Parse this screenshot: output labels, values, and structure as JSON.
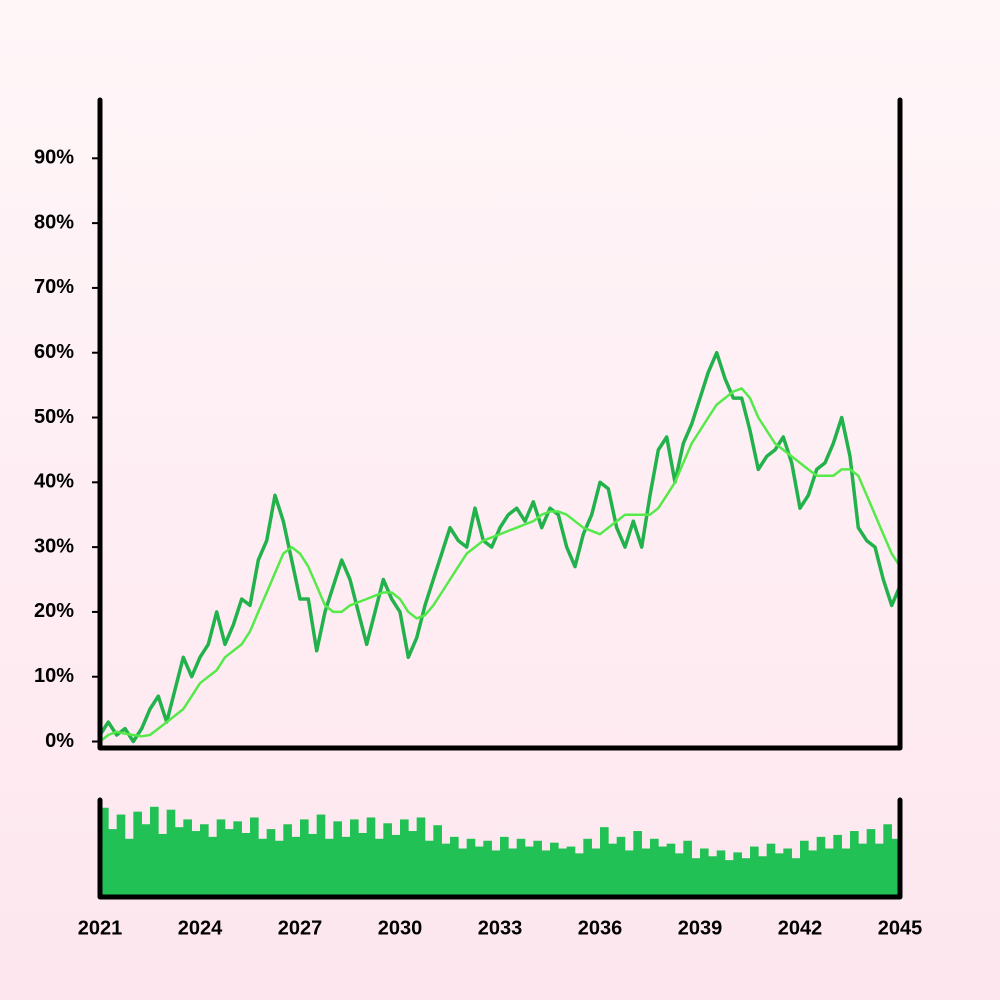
{
  "chart_data": [
    {
      "type": "line",
      "xlim": [
        2021,
        2045
      ],
      "ylim": [
        -1,
        99
      ],
      "yticks": [
        {
          "value": 0,
          "label": "0%"
        },
        {
          "value": 10,
          "label": "10%"
        },
        {
          "value": 20,
          "label": "20%"
        },
        {
          "value": 30,
          "label": "30%"
        },
        {
          "value": 40,
          "label": "40%"
        },
        {
          "value": 50,
          "label": "50%"
        },
        {
          "value": 60,
          "label": "60%"
        },
        {
          "value": 70,
          "label": "70%"
        },
        {
          "value": 80,
          "label": "80%"
        },
        {
          "value": 90,
          "label": "90%"
        }
      ],
      "grid": false,
      "x": [
        2021,
        2021.25,
        2021.5,
        2021.75,
        2022,
        2022.25,
        2022.5,
        2022.75,
        2023,
        2023.25,
        2023.5,
        2023.75,
        2024,
        2024.25,
        2024.5,
        2024.75,
        2025,
        2025.25,
        2025.5,
        2025.75,
        2026,
        2026.25,
        2026.5,
        2026.75,
        2027,
        2027.25,
        2027.5,
        2027.75,
        2028,
        2028.25,
        2028.5,
        2028.75,
        2029,
        2029.25,
        2029.5,
        2029.75,
        2030,
        2030.25,
        2030.5,
        2030.75,
        2031,
        2031.25,
        2031.5,
        2031.75,
        2032,
        2032.25,
        2032.5,
        2032.75,
        2033,
        2033.25,
        2033.5,
        2033.75,
        2034,
        2034.25,
        2034.5,
        2034.75,
        2035,
        2035.25,
        2035.5,
        2035.75,
        2036,
        2036.25,
        2036.5,
        2036.75,
        2037,
        2037.25,
        2037.5,
        2037.75,
        2038,
        2038.25,
        2038.5,
        2038.75,
        2039,
        2039.25,
        2039.5,
        2039.75,
        2040,
        2040.25,
        2040.5,
        2040.75,
        2041,
        2041.25,
        2041.5,
        2041.75,
        2042,
        2042.25,
        2042.5,
        2042.75,
        2043,
        2043.25,
        2043.5,
        2043.75,
        2044,
        2044.25,
        2044.5,
        2044.75,
        2045
      ],
      "series": [
        {
          "color": "#22b24c",
          "width": 3.5,
          "values": [
            1,
            3,
            1,
            2,
            0,
            2,
            5,
            7,
            3,
            8,
            13,
            10,
            13,
            15,
            20,
            15,
            18,
            22,
            21,
            28,
            31,
            38,
            34,
            28,
            22,
            22,
            14,
            20,
            24,
            28,
            25,
            20,
            15,
            20,
            25,
            22,
            20,
            13,
            16,
            21,
            25,
            29,
            33,
            31,
            30,
            36,
            31,
            30,
            33,
            35,
            36,
            34,
            37,
            33,
            36,
            35,
            30,
            27,
            32,
            35,
            40,
            39,
            33,
            30,
            34,
            30,
            38,
            45,
            47,
            40,
            46,
            49,
            53,
            57,
            60,
            56,
            53,
            53,
            48,
            42,
            44,
            45,
            47,
            43,
            36,
            38,
            42,
            43,
            46,
            50,
            44,
            33,
            31,
            30,
            25,
            21,
            24
          ]
        },
        {
          "color": "#55e94a",
          "width": 2.5,
          "values": [
            0,
            1,
            1.5,
            1.2,
            1,
            0.8,
            1,
            2,
            3,
            4,
            5,
            7,
            9,
            10,
            11,
            13,
            14,
            15,
            17,
            20,
            23,
            26,
            29,
            30,
            29,
            27,
            24,
            21,
            20,
            20,
            21,
            21.5,
            22,
            22.5,
            23,
            23,
            22,
            20,
            19,
            19.5,
            21,
            23,
            25,
            27,
            29,
            30,
            31,
            31.5,
            32,
            32.5,
            33,
            33.5,
            34,
            35,
            35.5,
            35.5,
            35,
            34,
            33,
            32.5,
            32,
            33,
            34,
            35,
            35,
            35,
            35,
            36,
            38,
            40,
            43,
            46,
            48,
            50,
            52,
            53,
            54,
            54.5,
            53,
            50,
            48,
            46,
            45,
            44,
            43,
            42,
            41,
            41,
            41,
            42,
            42,
            41,
            38,
            35,
            32,
            29,
            27
          ]
        }
      ]
    },
    {
      "type": "bar",
      "xlim": [
        2021,
        2045
      ],
      "xticks": [
        2021,
        2024,
        2027,
        2030,
        2033,
        2036,
        2039,
        2042,
        2045
      ],
      "ylim": [
        0,
        100
      ],
      "color": "#22c155",
      "x": [
        2021,
        2021.25,
        2021.5,
        2021.75,
        2022,
        2022.25,
        2022.5,
        2022.75,
        2023,
        2023.25,
        2023.5,
        2023.75,
        2024,
        2024.25,
        2024.5,
        2024.75,
        2025,
        2025.25,
        2025.5,
        2025.75,
        2026,
        2026.25,
        2026.5,
        2026.75,
        2027,
        2027.25,
        2027.5,
        2027.75,
        2028,
        2028.25,
        2028.5,
        2028.75,
        2029,
        2029.25,
        2029.5,
        2029.75,
        2030,
        2030.25,
        2030.5,
        2030.75,
        2031,
        2031.25,
        2031.5,
        2031.75,
        2032,
        2032.25,
        2032.5,
        2032.75,
        2033,
        2033.25,
        2033.5,
        2033.75,
        2034,
        2034.25,
        2034.5,
        2034.75,
        2035,
        2035.25,
        2035.5,
        2035.75,
        2036,
        2036.25,
        2036.5,
        2036.75,
        2037,
        2037.25,
        2037.5,
        2037.75,
        2038,
        2038.25,
        2038.5,
        2038.75,
        2039,
        2039.25,
        2039.5,
        2039.75,
        2040,
        2040.25,
        2040.5,
        2040.75,
        2041,
        2041.25,
        2041.5,
        2041.75,
        2042,
        2042.25,
        2042.5,
        2042.75,
        2043,
        2043.25,
        2043.5,
        2043.75,
        2044,
        2044.25,
        2044.5,
        2044.75
      ],
      "values": [
        92,
        70,
        85,
        60,
        88,
        75,
        93,
        65,
        90,
        72,
        80,
        68,
        75,
        62,
        80,
        70,
        78,
        66,
        82,
        60,
        70,
        58,
        75,
        62,
        80,
        65,
        85,
        60,
        78,
        62,
        80,
        66,
        82,
        60,
        76,
        64,
        80,
        68,
        82,
        58,
        74,
        55,
        62,
        50,
        60,
        52,
        58,
        48,
        62,
        50,
        60,
        52,
        58,
        48,
        56,
        50,
        52,
        45,
        60,
        50,
        72,
        55,
        62,
        48,
        68,
        50,
        60,
        52,
        55,
        45,
        58,
        40,
        50,
        42,
        48,
        38,
        46,
        40,
        52,
        42,
        55,
        45,
        50,
        40,
        58,
        48,
        62,
        50,
        64,
        50,
        68,
        55,
        70,
        55,
        75,
        60
      ]
    }
  ]
}
